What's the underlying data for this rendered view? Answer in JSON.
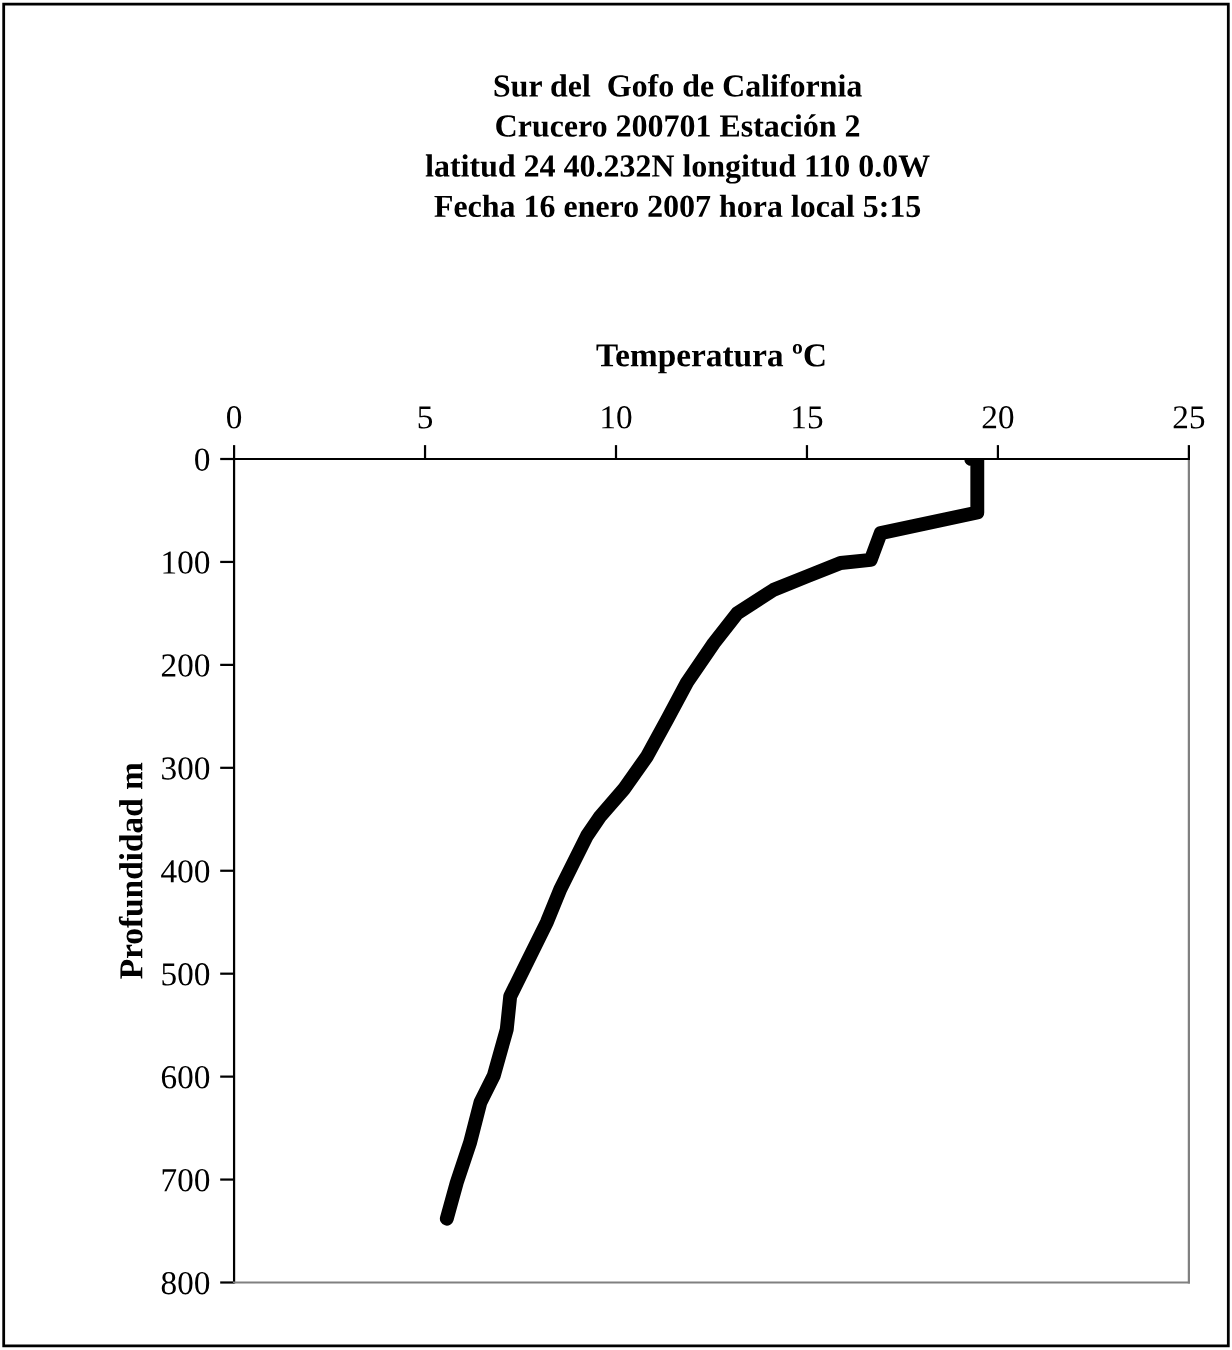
{
  "chart_data": {
    "type": "line",
    "title": "Sur del  Gofo de California\nCrucero 200701 Estación 2\nlatitud 24 40.232N longitud 110 0.0W\nFecha 16 enero 2007 hora local 5:15",
    "xlabel": "Temperatura ºC",
    "ylabel": "Profundidad m",
    "series": [
      {
        "color": "#000000",
        "x": [
          19.3,
          19.46,
          19.46,
          16.93,
          16.67,
          15.88,
          15.0,
          14.13,
          13.17,
          12.56,
          11.86,
          11.34,
          10.81,
          10.2,
          9.59,
          9.24,
          8.89,
          8.54,
          8.19,
          7.67,
          7.23,
          7.14,
          6.8,
          6.45,
          6.18,
          5.83,
          5.57
        ],
        "values": [
          0,
          0,
          52,
          72,
          98,
          101,
          114,
          127,
          150,
          179,
          217,
          253,
          289,
          321,
          347,
          366,
          392,
          418,
          450,
          489,
          522,
          554,
          599,
          625,
          664,
          703,
          738
        ]
      }
    ],
    "xlim": [
      0,
      25
    ],
    "xticks": [
      0,
      5,
      10,
      15,
      20,
      25
    ],
    "ylim": [
      800,
      0
    ],
    "yticks": [
      0,
      100,
      200,
      300,
      400,
      500,
      600,
      700,
      800
    ],
    "grid": false,
    "legend": false
  }
}
